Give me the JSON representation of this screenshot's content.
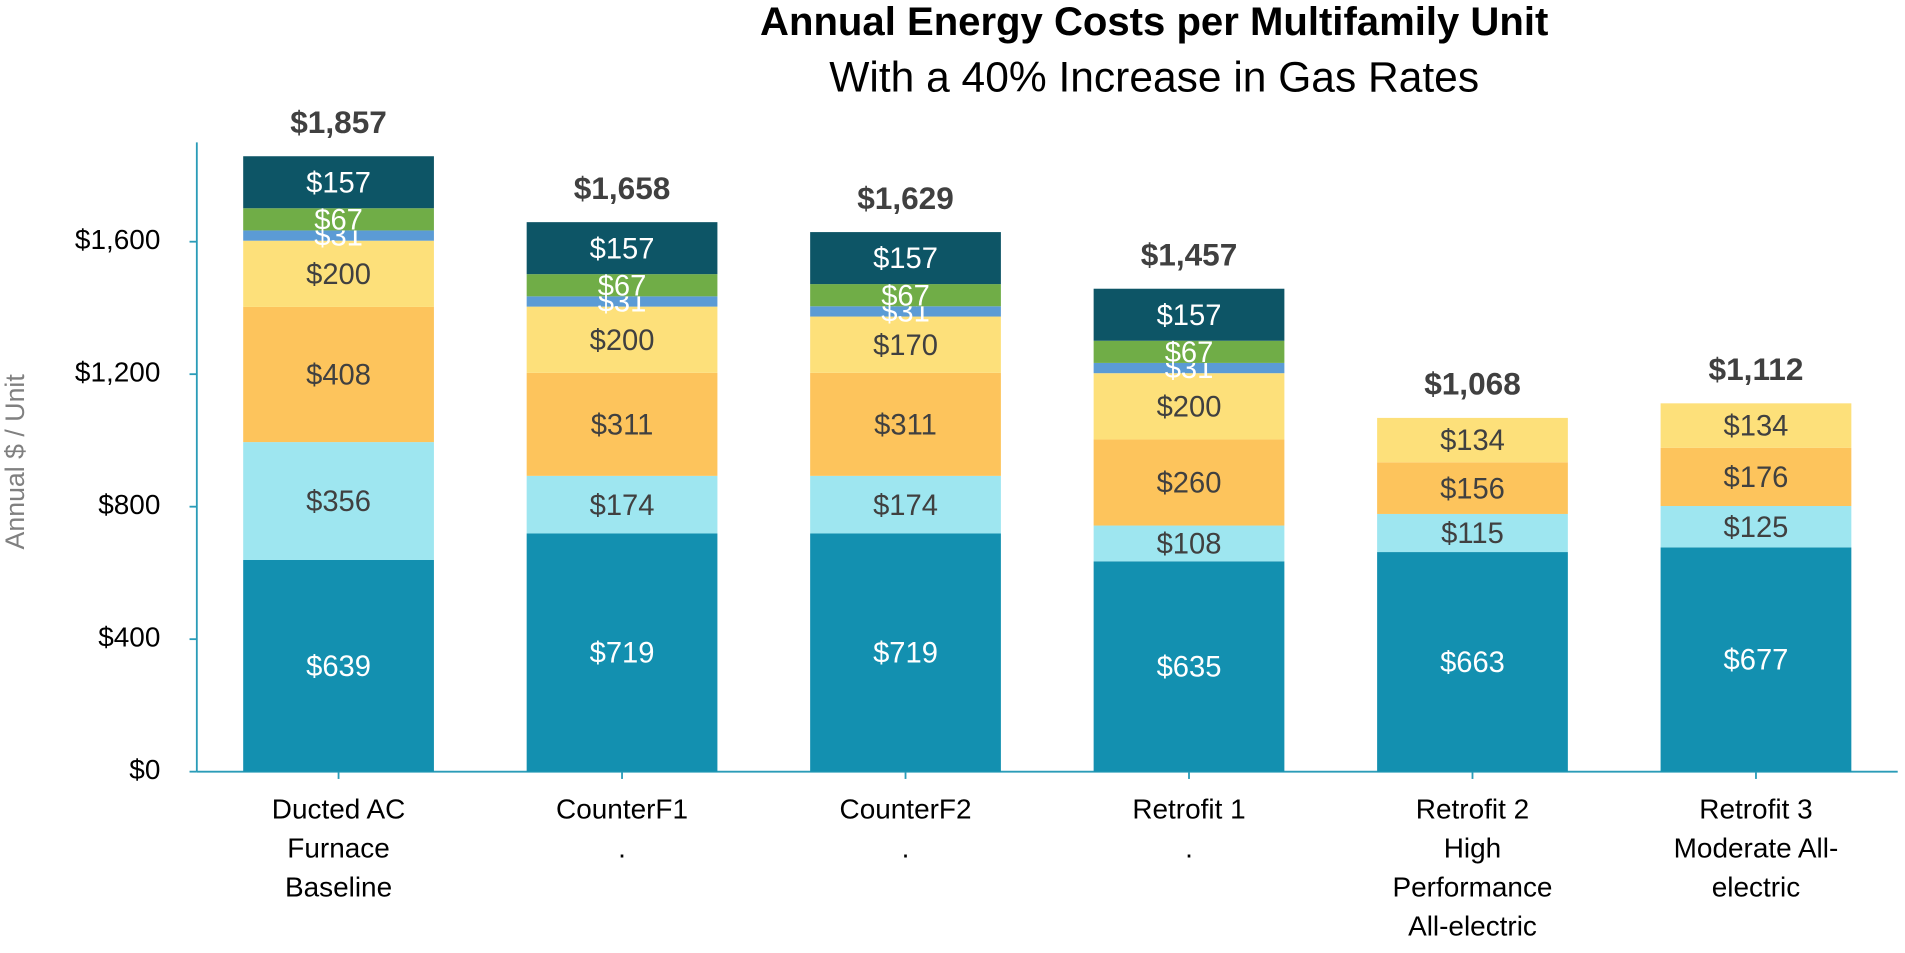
{
  "chart_data": {
    "type": "stacked_bar",
    "title": "Annual Energy Costs per Multifamily Unit",
    "subtitle": "With a 40% Increase in Gas Rates",
    "y_label": "Annual $ / Unit",
    "categories": [
      "Ducted AC\nFurnace\nBaseline",
      "CounterF1\n.",
      "CounterF2\n.",
      "Retrofit 1\n.",
      "Retrofit 2\nHigh\nPerformance\nAll-electric",
      "Retrofit 3\nModerate All-\nelectric"
    ],
    "series": [
      {
        "color": "#1390b0",
        "values": [
          639,
          719,
          719,
          635,
          663,
          677
        ],
        "value_labels": [
          "$639",
          "$719",
          "$719",
          "$635",
          "$663",
          "$677"
        ]
      },
      {
        "color": "#9ee6f0",
        "values": [
          356,
          174,
          174,
          108,
          115,
          125
        ],
        "value_labels": [
          "$356",
          "$174",
          "$174",
          "$108",
          "$115",
          "$125"
        ]
      },
      {
        "color": "#fdc45c",
        "values": [
          408,
          311,
          311,
          260,
          156,
          176
        ],
        "value_labels": [
          "$408",
          "$311",
          "$311",
          "$260",
          "$156",
          "$176"
        ]
      },
      {
        "color": "#fde07a",
        "values": [
          200,
          200,
          170,
          200,
          134,
          134
        ],
        "value_labels": [
          "$200",
          "$200",
          "$170",
          "$200",
          "$134",
          "$134"
        ]
      },
      {
        "color": "#5b9bd5",
        "values": [
          31,
          31,
          31,
          31,
          null,
          null
        ],
        "value_labels": [
          "$31",
          "$31",
          "$31",
          "$31",
          null,
          null
        ]
      },
      {
        "color": "#70ad47",
        "values": [
          67,
          67,
          67,
          67,
          null,
          null
        ],
        "value_labels": [
          "$67",
          "$67",
          "$67",
          "$67",
          null,
          null
        ]
      },
      {
        "color": "#0d5566",
        "values": [
          157,
          157,
          157,
          157,
          null,
          null
        ],
        "value_labels": [
          "$157",
          "$157",
          "$157",
          "$157",
          null,
          null
        ]
      }
    ],
    "totals": [
      1857,
      1658,
      1629,
      1457,
      1068,
      1112
    ],
    "total_labels": [
      "$1,857",
      "$1,658",
      "$1,629",
      "$1,457",
      "$1,068",
      "$1,112"
    ],
    "ylim": [
      0,
      1900
    ],
    "yticks": [
      {
        "value": 0,
        "label": "$0"
      },
      {
        "value": 400,
        "label": "$400"
      },
      {
        "value": 800,
        "label": "$800"
      },
      {
        "value": 1200,
        "label": "$1,200"
      },
      {
        "value": 1600,
        "label": "$1,600"
      }
    ]
  }
}
